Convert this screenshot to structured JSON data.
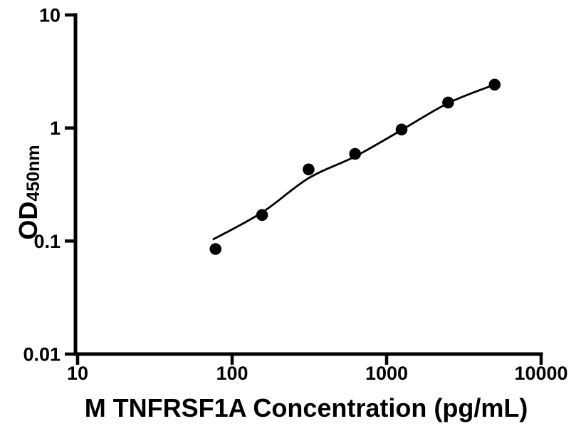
{
  "chart_data": {
    "type": "scatter",
    "title": "",
    "xlabel": "M TNFRSF1A Concentration (pg/mL)",
    "ylabel": {
      "main": "OD",
      "subscript": "450nm"
    },
    "x_axis": {
      "scale": "log",
      "min": 10,
      "max": 10000,
      "tick_values": [
        10,
        100,
        1000,
        10000
      ],
      "tick_labels": [
        "10",
        "100",
        "1000",
        "10000"
      ]
    },
    "y_axis": {
      "scale": "log",
      "min": 0.01,
      "max": 10,
      "tick_values": [
        10,
        1,
        0.1,
        0.01
      ],
      "tick_labels": [
        "10",
        "1",
        "0.1",
        "0.01"
      ]
    },
    "grid": false,
    "legend": false,
    "background": "#ffffff",
    "foreground": "#000000",
    "series": [
      {
        "name": "standard-points",
        "type": "scatter",
        "marker": "filled-circle",
        "color": "#000000",
        "x": [
          78.125,
          156.25,
          312.5,
          625,
          1250,
          2500,
          5000
        ],
        "y": [
          0.085,
          0.17,
          0.43,
          0.59,
          0.97,
          1.68,
          2.42
        ]
      },
      {
        "name": "fit-curve",
        "type": "line",
        "color": "#000000",
        "x": [
          75,
          156.25,
          312.5,
          625,
          1250,
          2500,
          5000
        ],
        "y": [
          0.103,
          0.179,
          0.36,
          0.56,
          0.96,
          1.66,
          2.42
        ]
      }
    ]
  }
}
